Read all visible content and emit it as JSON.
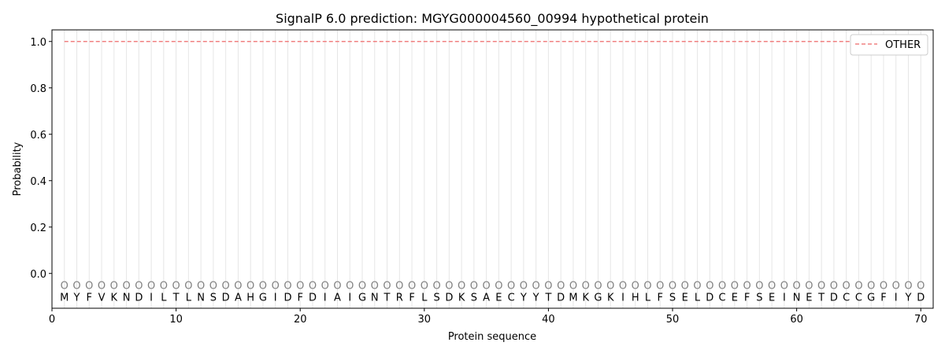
{
  "chart_data": {
    "type": "line",
    "title": "SignalP 6.0 prediction: MGYG000004560_00994 hypothetical protein",
    "xlabel": "Protein sequence",
    "ylabel": "Probability",
    "xlim": [
      0,
      71
    ],
    "ylim": [
      -0.15,
      1.05
    ],
    "xticks": [
      0,
      10,
      20,
      30,
      40,
      50,
      60,
      70
    ],
    "yticks": [
      0.0,
      0.2,
      0.4,
      0.6,
      0.8,
      1.0
    ],
    "ytick_labels": [
      "0.0",
      "0.2",
      "0.4",
      "0.6",
      "0.8",
      "1.0"
    ],
    "grid": "vertical lines at each residue",
    "legend_position": "top-right",
    "sequence": [
      "M",
      "Y",
      "F",
      "V",
      "K",
      "N",
      "D",
      "I",
      "L",
      "T",
      "L",
      "N",
      "S",
      "D",
      "A",
      "H",
      "G",
      "I",
      "D",
      "F",
      "D",
      "I",
      "A",
      "I",
      "G",
      "N",
      "T",
      "R",
      "F",
      "L",
      "S",
      "D",
      "K",
      "S",
      "A",
      "E",
      "C",
      "Y",
      "Y",
      "T",
      "D",
      "M",
      "K",
      "G",
      "K",
      "I",
      "H",
      "L",
      "F",
      "S",
      "E",
      "L",
      "D",
      "C",
      "E",
      "F",
      "S",
      "E",
      "I",
      "N",
      "E",
      "T",
      "D",
      "C",
      "C",
      "G",
      "F",
      "I",
      "Y",
      "D"
    ],
    "region_label": "O",
    "series": [
      {
        "name": "OTHER",
        "color": "#f08080",
        "style": "dashed",
        "x_start": 1,
        "x_end": 70,
        "value": 1.0
      }
    ]
  }
}
